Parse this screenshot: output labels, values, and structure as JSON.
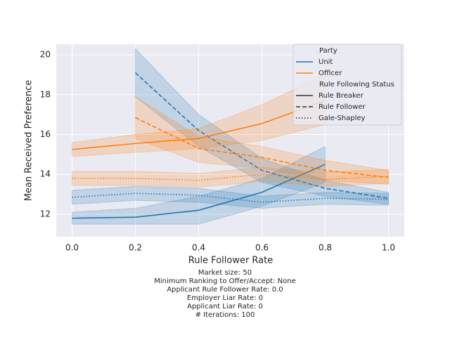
{
  "chart_data": {
    "type": "line",
    "x_label": "Rule Follower Rate",
    "y_label": "Mean Received Preference",
    "xlim": [
      -0.05,
      1.05
    ],
    "ylim": [
      10.87,
      20.53
    ],
    "xticks": [
      {
        "value": 0,
        "label": "0.0"
      },
      0.2,
      0.4,
      0.6,
      0.8,
      {
        "value": 1,
        "label": "1.0"
      }
    ],
    "yticks": [
      12,
      14,
      16,
      18,
      20
    ],
    "grid": true,
    "legend_position": "upper right",
    "legend": {
      "hue_title": "Party",
      "hue": [
        {
          "name": "Unit",
          "color": "#1f77b4"
        },
        {
          "name": "Officer",
          "color": "#ff7f0e"
        }
      ],
      "style_title": "Rule Following Status",
      "styles": [
        {
          "name": "Rule Breaker",
          "dash": "solid"
        },
        {
          "name": "Rule Follower",
          "dash": "dashed"
        },
        {
          "name": "Gale-Shapley",
          "dash": "dotted"
        }
      ]
    },
    "series": [
      {
        "party": 0,
        "status": 0,
        "color": "#1f77b4",
        "dash": "solid",
        "x": [
          0,
          0.2,
          0.4,
          0.6,
          0.8
        ],
        "values": [
          11.8,
          11.85,
          12.2,
          13.1,
          14.5
        ],
        "lower": [
          11.5,
          11.5,
          11.5,
          12.4,
          13.6
        ],
        "upper": [
          12.1,
          12.3,
          12.9,
          13.8,
          15.4
        ]
      },
      {
        "party": 0,
        "status": 1,
        "color": "#1f77b4",
        "dash": "dashed",
        "x": [
          0.2,
          0.4,
          0.6,
          0.8,
          1
        ],
        "values": [
          19.1,
          16.2,
          14.2,
          13.3,
          12.8
        ],
        "lower": [
          17.9,
          15.4,
          13.6,
          12.9,
          12.5
        ],
        "upper": [
          20.3,
          17.0,
          14.8,
          13.7,
          13.1
        ]
      },
      {
        "party": 0,
        "status": 2,
        "color": "#1f77b4",
        "dash": "dotted",
        "x": [
          0,
          0.2,
          0.4,
          0.6,
          0.8,
          1
        ],
        "values": [
          12.85,
          13.05,
          12.95,
          12.6,
          12.8,
          12.75
        ],
        "lower": [
          12.5,
          12.7,
          12.6,
          12.3,
          12.5,
          12.45
        ],
        "upper": [
          13.2,
          13.4,
          13.3,
          12.9,
          13.1,
          13.05
        ]
      },
      {
        "party": 1,
        "status": 0,
        "color": "#ff7f0e",
        "dash": "solid",
        "x": [
          0,
          0.2,
          0.4,
          0.6,
          0.8
        ],
        "values": [
          15.25,
          15.55,
          15.8,
          16.55,
          17.7
        ],
        "lower": [
          14.9,
          15.1,
          15.3,
          15.7,
          16.5
        ],
        "upper": [
          15.6,
          16.0,
          16.3,
          17.5,
          19.0
        ]
      },
      {
        "party": 1,
        "status": 1,
        "color": "#ff7f0e",
        "dash": "dashed",
        "x": [
          0.2,
          0.4,
          0.6,
          0.8,
          1
        ],
        "values": [
          16.85,
          15.3,
          14.85,
          14.2,
          13.85
        ],
        "lower": [
          15.8,
          14.6,
          14.3,
          13.7,
          13.5
        ],
        "upper": [
          17.9,
          15.9,
          15.4,
          14.7,
          14.2
        ]
      },
      {
        "party": 1,
        "status": 2,
        "color": "#ff7f0e",
        "dash": "dotted",
        "x": [
          0,
          0.2,
          0.4,
          0.6,
          0.8,
          1
        ],
        "values": [
          13.8,
          13.8,
          13.7,
          14.0,
          13.75,
          13.9
        ],
        "lower": [
          13.45,
          13.45,
          13.35,
          13.65,
          13.4,
          13.55
        ],
        "upper": [
          14.15,
          14.15,
          14.05,
          14.35,
          14.1,
          14.25
        ]
      }
    ],
    "notes": [
      "Market size: 50",
      "Minimum Ranking to Offer/Accept: None",
      "Applicant Rule Follower Rate: 0.0",
      "Employer Liar Rate: 0",
      "Applicant Liar Rate: 0",
      "# Iterations: 100"
    ]
  }
}
